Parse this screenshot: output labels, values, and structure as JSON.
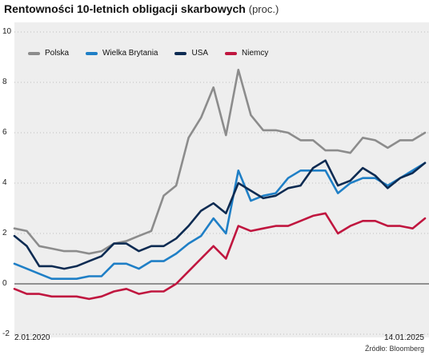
{
  "chart_data": {
    "type": "line",
    "title": "Rentowności 10-letnich obligacji skarbowych",
    "unit": "(proc.)",
    "x_start_label": "2.01.2020",
    "x_end_label": "14.01.2025",
    "y_ticks": [
      "10",
      "8",
      "6",
      "4",
      "2",
      "0",
      "-2"
    ],
    "ylim": [
      -2,
      10
    ],
    "source": "Źródło: Bloomberg",
    "x": [
      "2020-01",
      "2020-03",
      "2020-04",
      "2020-05",
      "2020-07",
      "2020-09",
      "2020-11",
      "2021-01",
      "2021-03",
      "2021-05",
      "2021-07",
      "2021-09",
      "2021-11",
      "2022-01",
      "2022-03",
      "2022-05",
      "2022-06",
      "2022-08",
      "2022-10",
      "2022-11",
      "2023-01",
      "2023-03",
      "2023-05",
      "2023-07",
      "2023-09",
      "2023-10",
      "2023-12",
      "2024-02",
      "2024-04",
      "2024-06",
      "2024-08",
      "2024-10",
      "2024-12",
      "2025-01"
    ],
    "series": [
      {
        "name": "Polska",
        "color": "#8c8c8c",
        "values": [
          2.2,
          2.1,
          1.5,
          1.4,
          1.3,
          1.3,
          1.2,
          1.3,
          1.6,
          1.7,
          1.9,
          2.1,
          3.5,
          3.9,
          5.8,
          6.6,
          7.8,
          5.9,
          8.5,
          6.7,
          6.1,
          6.1,
          6.0,
          5.7,
          5.7,
          5.3,
          5.3,
          5.2,
          5.8,
          5.7,
          5.4,
          5.7,
          5.7,
          6.0
        ]
      },
      {
        "name": "Wielka Brytania",
        "color": "#1f7fc6",
        "values": [
          0.8,
          0.6,
          0.4,
          0.2,
          0.2,
          0.2,
          0.3,
          0.3,
          0.8,
          0.8,
          0.6,
          0.9,
          0.9,
          1.2,
          1.6,
          1.9,
          2.6,
          2.0,
          4.5,
          3.3,
          3.5,
          3.6,
          4.2,
          4.5,
          4.5,
          4.5,
          3.6,
          4.0,
          4.2,
          4.2,
          3.9,
          4.2,
          4.5,
          4.8
        ]
      },
      {
        "name": "USA",
        "color": "#0d2b52",
        "values": [
          1.9,
          1.5,
          0.7,
          0.7,
          0.6,
          0.7,
          0.9,
          1.1,
          1.6,
          1.6,
          1.3,
          1.5,
          1.5,
          1.8,
          2.3,
          2.9,
          3.2,
          2.8,
          4.0,
          3.7,
          3.4,
          3.5,
          3.8,
          3.9,
          4.6,
          4.9,
          3.9,
          4.1,
          4.6,
          4.3,
          3.8,
          4.2,
          4.4,
          4.8
        ]
      },
      {
        "name": "Niemcy",
        "color": "#c0163f",
        "values": [
          -0.2,
          -0.4,
          -0.4,
          -0.5,
          -0.5,
          -0.5,
          -0.6,
          -0.5,
          -0.3,
          -0.2,
          -0.4,
          -0.3,
          -0.3,
          0.0,
          0.5,
          1.0,
          1.5,
          1.0,
          2.3,
          2.1,
          2.2,
          2.3,
          2.3,
          2.5,
          2.7,
          2.8,
          2.0,
          2.3,
          2.5,
          2.5,
          2.3,
          2.3,
          2.2,
          2.6
        ]
      }
    ],
    "legend_placement": "top-left",
    "zero_line": true
  }
}
